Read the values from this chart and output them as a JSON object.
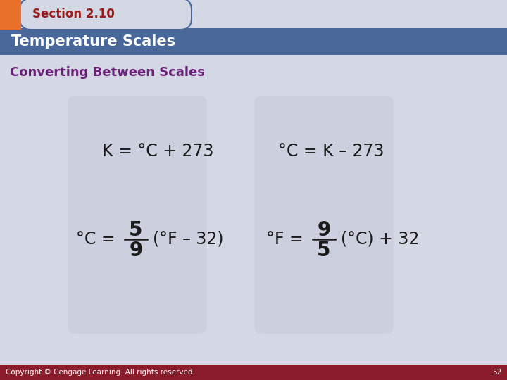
{
  "section_label": "Section 2.10",
  "title": "Temperature Scales",
  "subtitle": "Converting Between Scales",
  "copyright": "Copyright © Cengage Learning. All rights reserved.",
  "page_num": "52",
  "bg_color": "#d4d8e4",
  "header_tab_color": "#d4d8e4",
  "header_bar_color": "#4a6799",
  "orange_rect_color": "#e8702a",
  "section_text_color": "#9b1b1b",
  "title_text_color": "#ffffff",
  "subtitle_text_color": "#6b2177",
  "formula_text_color": "#1a1a1a",
  "footer_bar_color": "#8b1c2c",
  "footer_text_color": "#ffffff"
}
